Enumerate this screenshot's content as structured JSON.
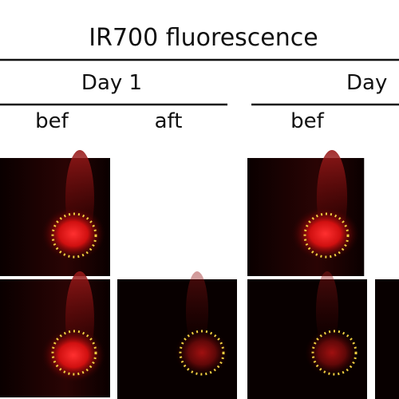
{
  "header": {
    "title": "IR700 fluorescence"
  },
  "groups": [
    {
      "label": "Day 1"
    },
    {
      "label": "Day"
    }
  ],
  "columns": [
    {
      "label": "bef"
    },
    {
      "label": "aft"
    },
    {
      "label": "bef"
    }
  ]
}
